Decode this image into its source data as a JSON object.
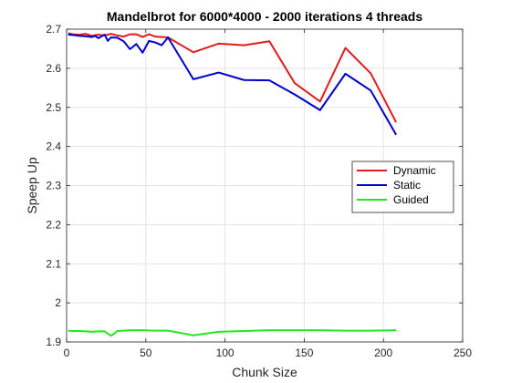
{
  "chart_data": {
    "type": "line",
    "title": "Mandelbrot for 6000*4000 - 2000 iterations 4 threads",
    "xlabel": "Chunk Size",
    "ylabel": "Speep Up",
    "xlim": [
      0,
      250
    ],
    "ylim": [
      1.9,
      2.7
    ],
    "xticks": [
      0,
      50,
      100,
      150,
      200,
      250
    ],
    "yticks": [
      1.9,
      2,
      2.1,
      2.2,
      2.3,
      2.4,
      2.5,
      2.6,
      2.7
    ],
    "xtick_labels": [
      "0",
      "50",
      "100",
      "150",
      "200",
      "250"
    ],
    "ytick_labels": [
      "1.9",
      "2",
      "2.1",
      "2.2",
      "2.3",
      "2.4",
      "2.5",
      "2.6",
      "2.7"
    ],
    "grid": true,
    "legend_position": "right-middle",
    "series": [
      {
        "name": "Dynamic",
        "color": "#e41a1c",
        "x": [
          1,
          4,
          8,
          12,
          16,
          20,
          24,
          28,
          32,
          36,
          40,
          44,
          48,
          52,
          56,
          64,
          80,
          96,
          112,
          128,
          144,
          160,
          176,
          192,
          208
        ],
        "y": [
          2.69,
          2.687,
          2.686,
          2.688,
          2.683,
          2.686,
          2.684,
          2.688,
          2.684,
          2.681,
          2.687,
          2.687,
          2.68,
          2.687,
          2.681,
          2.679,
          2.641,
          2.663,
          2.659,
          2.669,
          2.562,
          2.515,
          2.652,
          2.587,
          2.462
        ]
      },
      {
        "name": "Static",
        "color": "#0000cc",
        "x": [
          1,
          4,
          8,
          12,
          16,
          18,
          20,
          24,
          26,
          28,
          32,
          36,
          40,
          44,
          48,
          52,
          56,
          60,
          64,
          80,
          96,
          112,
          128,
          144,
          160,
          176,
          192,
          208
        ],
        "y": [
          2.686,
          2.685,
          2.683,
          2.682,
          2.68,
          2.683,
          2.677,
          2.686,
          2.67,
          2.679,
          2.678,
          2.669,
          2.649,
          2.662,
          2.64,
          2.67,
          2.666,
          2.659,
          2.679,
          2.572,
          2.589,
          2.57,
          2.569,
          2.533,
          2.493,
          2.586,
          2.543,
          2.43
        ]
      },
      {
        "name": "Guided",
        "color": "#22e822",
        "x": [
          1,
          4,
          8,
          12,
          16,
          20,
          24,
          28,
          30,
          32,
          36,
          40,
          48,
          56,
          64,
          80,
          96,
          112,
          128,
          144,
          160,
          176,
          192,
          208
        ],
        "y": [
          1.929,
          1.928,
          1.928,
          1.927,
          1.926,
          1.927,
          1.927,
          1.916,
          1.921,
          1.928,
          1.929,
          1.93,
          1.93,
          1.929,
          1.929,
          1.917,
          1.926,
          1.928,
          1.93,
          1.93,
          1.93,
          1.929,
          1.929,
          1.93
        ]
      }
    ]
  }
}
